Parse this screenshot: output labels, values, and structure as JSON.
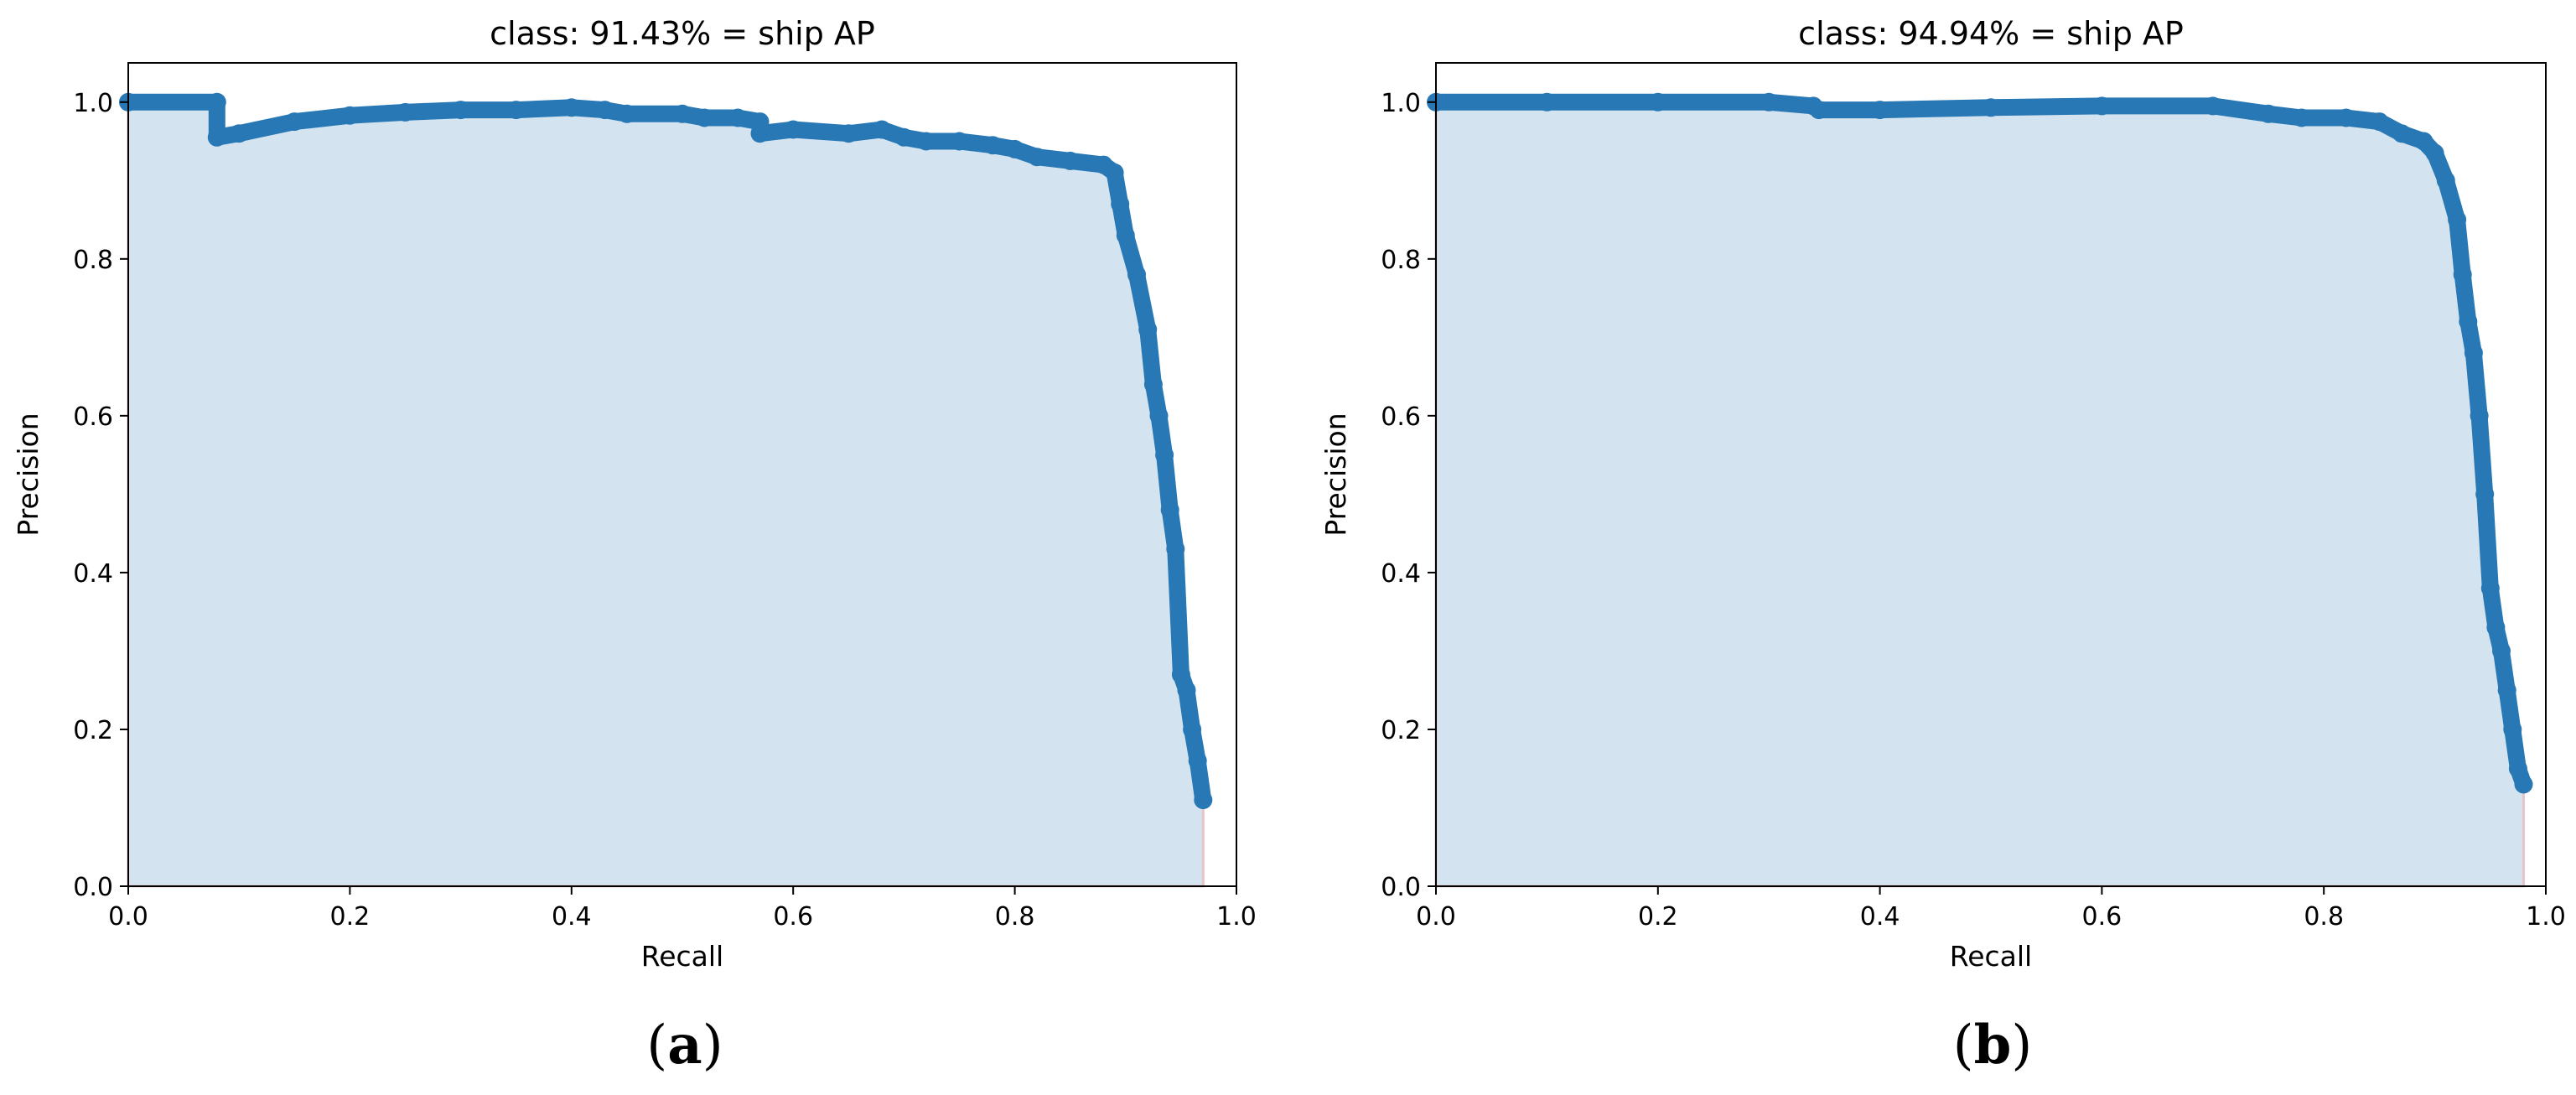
{
  "chart_data": [
    {
      "type": "area",
      "panel_label": "a",
      "title": "class: 91.43% = ship AP",
      "xlabel": "Recall",
      "ylabel": "Precision",
      "xlim": [
        0.0,
        1.0
      ],
      "ylim": [
        0.0,
        1.05
      ],
      "xticks": [
        "0.0",
        "0.2",
        "0.4",
        "0.6",
        "0.8",
        "1.0"
      ],
      "yticks": [
        "0.0",
        "0.2",
        "0.4",
        "0.6",
        "0.8",
        "1.0"
      ],
      "grid": false,
      "colors": {
        "line": "#2878b5",
        "fill": "#d3e4f0",
        "edge": "#e8c3c8"
      },
      "series": [
        {
          "x": [
            0.0,
            0.08,
            0.08,
            0.1,
            0.15,
            0.2,
            0.25,
            0.3,
            0.35,
            0.4,
            0.43,
            0.45,
            0.5,
            0.52,
            0.55,
            0.57,
            0.57,
            0.6,
            0.65,
            0.68,
            0.7,
            0.72,
            0.75,
            0.78,
            0.8,
            0.82,
            0.85,
            0.88,
            0.89,
            0.895,
            0.9,
            0.91,
            0.92,
            0.925,
            0.93,
            0.935,
            0.94,
            0.945,
            0.95,
            0.955,
            0.96,
            0.965,
            0.97
          ],
          "y": [
            1.0,
            1.0,
            0.955,
            0.96,
            0.975,
            0.983,
            0.987,
            0.99,
            0.99,
            0.993,
            0.99,
            0.985,
            0.985,
            0.98,
            0.98,
            0.975,
            0.96,
            0.965,
            0.96,
            0.965,
            0.955,
            0.95,
            0.95,
            0.945,
            0.94,
            0.93,
            0.925,
            0.92,
            0.91,
            0.87,
            0.83,
            0.78,
            0.71,
            0.64,
            0.6,
            0.55,
            0.48,
            0.43,
            0.27,
            0.25,
            0.2,
            0.16,
            0.11
          ]
        }
      ]
    },
    {
      "type": "area",
      "panel_label": "b",
      "title": "class: 94.94% = ship AP",
      "xlabel": "Recall",
      "ylabel": "Precision",
      "xlim": [
        0.0,
        1.0
      ],
      "ylim": [
        0.0,
        1.05
      ],
      "xticks": [
        "0.0",
        "0.2",
        "0.4",
        "0.6",
        "0.8",
        "1.0"
      ],
      "yticks": [
        "0.0",
        "0.2",
        "0.4",
        "0.6",
        "0.8",
        "1.0"
      ],
      "grid": false,
      "colors": {
        "line": "#2878b5",
        "fill": "#d3e4f0",
        "edge": "#e8c3c8"
      },
      "series": [
        {
          "x": [
            0.0,
            0.1,
            0.2,
            0.3,
            0.34,
            0.345,
            0.4,
            0.5,
            0.6,
            0.7,
            0.75,
            0.78,
            0.82,
            0.85,
            0.87,
            0.89,
            0.9,
            0.91,
            0.92,
            0.925,
            0.93,
            0.935,
            0.94,
            0.945,
            0.95,
            0.955,
            0.96,
            0.965,
            0.97,
            0.975,
            0.98
          ],
          "y": [
            1.0,
            1.0,
            1.0,
            1.0,
            0.995,
            0.99,
            0.99,
            0.993,
            0.995,
            0.995,
            0.985,
            0.98,
            0.98,
            0.975,
            0.96,
            0.95,
            0.935,
            0.9,
            0.85,
            0.78,
            0.72,
            0.68,
            0.6,
            0.5,
            0.38,
            0.33,
            0.3,
            0.25,
            0.2,
            0.15,
            0.13
          ]
        }
      ]
    }
  ]
}
